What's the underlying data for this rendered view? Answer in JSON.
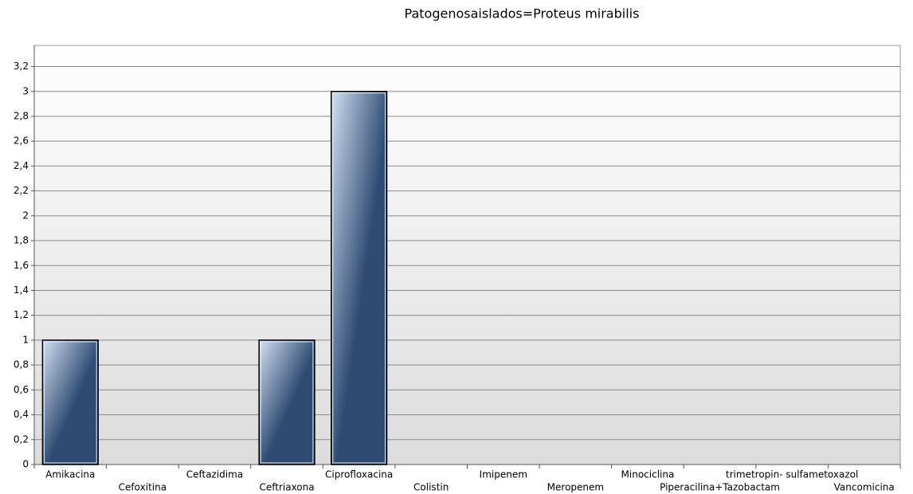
{
  "chart_data": {
    "type": "bar",
    "title": "Patogenosaislados=Proteus mirabilis",
    "categories": [
      "Amikacina",
      "Cefoxitina",
      "Ceftazidima",
      "Ceftriaxona",
      "Ciprofloxacina",
      "Colistin",
      "Imipenem",
      "Meropenem",
      "Minociclina",
      "Piperacilina+Tazobactam",
      "trimetropin- sulfametoxazol",
      "Vancomicina"
    ],
    "values": [
      1,
      0,
      0,
      1,
      3,
      0,
      0,
      0,
      0,
      0,
      0,
      0
    ],
    "color": "#2f4b72",
    "ylim": [
      0,
      3.37
    ],
    "yticks": [
      0,
      {
        "value": 0.2,
        "label": "0,2"
      },
      {
        "value": 0.4,
        "label": "0,4"
      },
      {
        "value": 0.6,
        "label": "0,6"
      },
      {
        "value": 0.8,
        "label": "0,8"
      },
      1,
      {
        "value": 1.2,
        "label": "1,2"
      },
      {
        "value": 1.4,
        "label": "1,4"
      },
      {
        "value": 1.6,
        "label": "1,6"
      },
      {
        "value": 1.8,
        "label": "1,8"
      },
      2,
      {
        "value": 2.2,
        "label": "2,2"
      },
      {
        "value": 2.4,
        "label": "2,4"
      },
      {
        "value": 2.6,
        "label": "2,6"
      },
      {
        "value": 2.8,
        "label": "2,8"
      },
      3,
      {
        "value": 3.2,
        "label": "3,2"
      }
    ],
    "grid": true
  }
}
